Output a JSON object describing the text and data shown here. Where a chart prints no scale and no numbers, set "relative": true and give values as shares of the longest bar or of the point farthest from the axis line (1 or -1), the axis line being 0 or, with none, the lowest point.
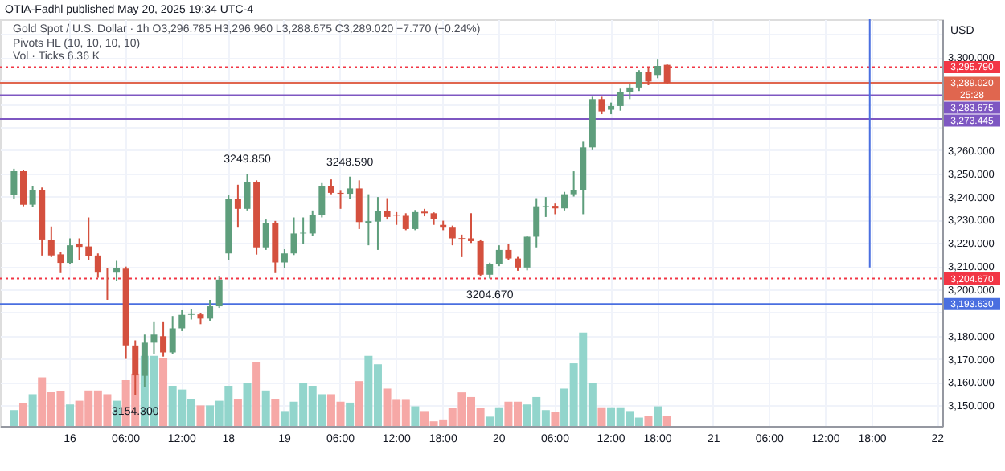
{
  "chart_data": [
    {
      "type": "candlestick",
      "title": "Gold Spot / U.S. Dollar · 1h  O3,296.785  H3,296.960  L3,288.675  C3,289.020  −7.770 (−0.24%)",
      "subtitle": "Pivots HL (10, 10, 10, 10)",
      "ylabel": "USD",
      "categories": [
        null,
        null,
        null,
        null,
        null,
        null,
        null,
        "16",
        null,
        null,
        null,
        null,
        null,
        "06:00",
        null,
        null,
        null,
        null,
        null,
        "12:00",
        null,
        null,
        null,
        null,
        "18",
        null,
        null,
        null,
        null,
        null,
        "19",
        null,
        null,
        null,
        null,
        null,
        "06:00",
        null,
        null,
        null,
        null,
        null,
        "12:00",
        null,
        null,
        null,
        null,
        "18:00",
        null,
        null,
        null,
        null,
        null,
        "20",
        null,
        null,
        null,
        null,
        null,
        "06:00",
        null,
        null,
        null,
        null,
        null,
        "12:00",
        null,
        null,
        null,
        null,
        "18:00",
        null,
        null,
        null,
        null,
        null,
        "21",
        null,
        null,
        null,
        null,
        null,
        "06:00",
        null,
        null,
        null,
        null,
        null,
        "12:00",
        null,
        null,
        null,
        null,
        "18:00",
        null,
        null,
        null,
        null,
        null,
        null,
        "22"
      ],
      "ohlc": [
        null,
        [
          3240.9,
          3252,
          3239,
          3250.9
        ],
        [
          3250.9,
          3251.5,
          3235.8,
          3236.5
        ],
        [
          3236.5,
          3244.5,
          3235.5,
          3242.8
        ],
        [
          3242.8,
          3243.9,
          3214.6,
          3221.5
        ],
        [
          3221.5,
          3227.1,
          3213.9,
          3214.6
        ],
        [
          3215.1,
          3216,
          3207,
          3211.4
        ],
        [
          3211.4,
          3222,
          3211,
          3219
        ],
        [
          3219.5,
          3222,
          3212.8,
          3218.3
        ],
        [
          3218.5,
          3231,
          3212.8,
          3214.4
        ],
        [
          3214.6,
          3215.5,
          3205,
          3207.2
        ],
        [
          3207.5,
          3209,
          3195.5,
          3207.3
        ],
        [
          3207.2,
          3212.3,
          3203.5,
          3209.1
        ],
        [
          3208.9,
          3209.8,
          3170,
          3175.8
        ],
        [
          3175.8,
          3178,
          3154.3,
          3162.9
        ],
        [
          3162.7,
          3180.5,
          3158,
          3177
        ],
        [
          3177,
          3186.2,
          3172,
          3180.5
        ],
        [
          3179.8,
          3186.2,
          3171,
          3172.8
        ],
        [
          3172.8,
          3188.5,
          3172,
          3183.2
        ],
        [
          3183.2,
          3191,
          3182,
          3189
        ],
        [
          3189,
          3191.5,
          3187,
          3189.3
        ],
        [
          3189.2,
          3189.8,
          3185,
          3187.4
        ],
        [
          3187.4,
          3195.5,
          3186.5,
          3192.7
        ],
        [
          3192.7,
          3205.8,
          3192,
          3204.2
        ],
        [
          3215.5,
          3240.5,
          3212.8,
          3238.9
        ],
        [
          3238.9,
          3245.1,
          3226.6,
          3234.7
        ],
        [
          3234.7,
          3249.85,
          3234,
          3246.2
        ],
        [
          3246.2,
          3247,
          3215,
          3218.1
        ],
        [
          3218.1,
          3230.1,
          3217,
          3228.5
        ],
        [
          3228.5,
          3229.5,
          3207,
          3211.6
        ],
        [
          3211.6,
          3217.3,
          3209.3,
          3215.5
        ],
        [
          3215.5,
          3231,
          3214.8,
          3224.1
        ],
        [
          3224.1,
          3231,
          3219.7,
          3224.4
        ],
        [
          3224.1,
          3234,
          3223.2,
          3231.9
        ],
        [
          3231.9,
          3245.8,
          3231,
          3244.4
        ],
        [
          3244.4,
          3247.4,
          3241,
          3241.6
        ],
        [
          3241.6,
          3242.5,
          3234.7,
          3241.2
        ],
        [
          3241.2,
          3248.59,
          3239,
          3243.5
        ],
        [
          3243.5,
          3247,
          3226,
          3229
        ],
        [
          3228.6,
          3241,
          3219,
          3229.4
        ],
        [
          3229.2,
          3239.8,
          3217,
          3233.9
        ],
        [
          3233.9,
          3239.3,
          3230.1,
          3231.2
        ],
        [
          3231.7,
          3233.3,
          3227.8,
          3231.6
        ],
        [
          3231.7,
          3232.8,
          3225.5,
          3226
        ],
        [
          3226,
          3234.2,
          3225.5,
          3233.3
        ],
        [
          3233.5,
          3234.7,
          3231.5,
          3232.8
        ],
        [
          3232.8,
          3233.2,
          3227.8,
          3230.3
        ],
        [
          3227.8,
          3229.6,
          3225.5,
          3226.6
        ],
        [
          3226.6,
          3227.5,
          3219,
          3222
        ],
        [
          3222.1,
          3223.6,
          3213.9,
          3221.8
        ],
        [
          3222,
          3232.8,
          3220,
          3220.8
        ],
        [
          3220.8,
          3221.5,
          3205.5,
          3206.3
        ],
        [
          3206.3,
          3211.5,
          3204.67,
          3211
        ],
        [
          3211,
          3219,
          3210,
          3217
        ],
        [
          3217,
          3219.7,
          3212.5,
          3213.3
        ],
        [
          3213.3,
          3214,
          3208,
          3209.4
        ],
        [
          3209.4,
          3223,
          3208.2,
          3222.7
        ],
        [
          3222.7,
          3239.3,
          3218.1,
          3235.8
        ],
        [
          3235.8,
          3239.8,
          3231.2,
          3236
        ],
        [
          3236,
          3237,
          3232.4,
          3234.9
        ],
        [
          3234.9,
          3242,
          3234,
          3241
        ],
        [
          3241,
          3250.9,
          3240,
          3242.8
        ],
        [
          3242.8,
          3263.6,
          3232.4,
          3261.2
        ],
        [
          3261.2,
          3283,
          3260,
          3282
        ],
        [
          3282,
          3283,
          3275.5,
          3276.7
        ],
        [
          3277.4,
          3280.5,
          3275.5,
          3279
        ],
        [
          3279,
          3286.5,
          3277,
          3285
        ],
        [
          3285,
          3288.5,
          3282,
          3287
        ],
        [
          3287,
          3294.5,
          3285.5,
          3293.6
        ],
        [
          3293.6,
          3295.79,
          3288,
          3289.6
        ],
        [
          3292.4,
          3299,
          3291,
          3296.3
        ],
        [
          3296.785,
          3296.96,
          3288.675,
          3289.02
        ],
        null,
        null,
        null,
        null,
        null,
        null,
        null,
        null,
        null,
        null,
        null,
        null,
        null,
        null,
        null,
        null,
        null,
        null,
        null,
        null,
        null,
        null,
        null,
        null,
        null,
        null,
        null,
        null,
        null
      ],
      "colors": [
        null,
        "#5e9e7c",
        "#d4503e",
        "#5e9e7c",
        "#d4503e",
        "#d4503e",
        "#d4503e",
        "#5e9e7c",
        "#d4503e",
        "#d4503e",
        "#d4503e",
        "#d4503e",
        "#5e9e7c",
        "#d4503e",
        "#d4503e",
        "#5e9e7c",
        "#5e9e7c",
        "#d4503e",
        "#5e9e7c",
        "#5e9e7c",
        "#5e9e7c",
        "#d4503e",
        "#5e9e7c",
        "#5e9e7c",
        "#5e9e7c",
        "#d4503e",
        "#5e9e7c",
        "#d4503e",
        "#5e9e7c",
        "#d4503e",
        "#5e9e7c",
        "#5e9e7c",
        "#5e9e7c",
        "#5e9e7c",
        "#5e9e7c",
        "#d4503e",
        "#d4503e",
        "#5e9e7c",
        "#d4503e",
        "#5e9e7c",
        "#5e9e7c",
        "#d4503e",
        "#d4503e",
        "#d4503e",
        "#5e9e7c",
        "#d4503e",
        "#d4503e",
        "#d4503e",
        "#d4503e",
        "#d4503e",
        "#d4503e",
        "#d4503e",
        "#5e9e7c",
        "#5e9e7c",
        "#d4503e",
        "#d4503e",
        "#5e9e7c",
        "#5e9e7c",
        "#5e9e7c",
        "#d4503e",
        "#5e9e7c",
        "#5e9e7c",
        "#5e9e7c",
        "#5e9e7c",
        "#d4503e",
        "#5e9e7c",
        "#5e9e7c",
        "#5e9e7c",
        "#5e9e7c",
        "#d4503e",
        "#5e9e7c",
        "#d4503e",
        null,
        null,
        null,
        null,
        null,
        null,
        null,
        null,
        null,
        null,
        null,
        null,
        null,
        null,
        null,
        null,
        null,
        null,
        null,
        null,
        null,
        null,
        null,
        null,
        null,
        null,
        null,
        null,
        null
      ],
      "ylim": [
        3141.1,
        3316.4
      ],
      "yticks": [
        {
          "value": 3150,
          "label": "3,150.000"
        },
        {
          "value": 3160,
          "label": "3,160.000"
        },
        {
          "value": 3170,
          "label": "3,170.000"
        },
        {
          "value": 3180,
          "label": "3,180.000"
        },
        {
          "value": 3190,
          "label": null
        },
        {
          "value": 3200,
          "label": "3,200.000"
        },
        {
          "value": 3210,
          "label": "3,210.000"
        },
        {
          "value": 3220,
          "label": "3,220.000"
        },
        {
          "value": 3230,
          "label": "3,230.000"
        },
        {
          "value": 3240,
          "label": "3,240.000"
        },
        {
          "value": 3250,
          "label": "3,250.000"
        },
        {
          "value": 3260,
          "label": "3,260.000"
        },
        {
          "value": 3270,
          "label": null
        },
        {
          "value": 3280,
          "label": null
        },
        {
          "value": 3290,
          "label": null
        },
        {
          "value": 3300,
          "label": "3,300.000"
        },
        {
          "value": 3310,
          "label": null
        }
      ],
      "grid": true,
      "ref_lines": [
        {
          "axis": "y",
          "value": 3295.79,
          "label": "3,295.790",
          "color": "#f23645",
          "line_style": "dotted"
        },
        {
          "axis": "y",
          "value": 3289.02,
          "label": "3,289.020\n25:28",
          "color": "#e0664f",
          "line_style": "solid"
        },
        {
          "axis": "y",
          "value": 3283.675,
          "label": "3,283.675",
          "color": "#7e57c2",
          "line_style": "solid"
        },
        {
          "axis": "y",
          "value": 3273.445,
          "label": "3,273.445",
          "color": "#7e57c2",
          "line_style": "solid"
        },
        {
          "axis": "y",
          "value": 3204.67,
          "label": "3,204.670",
          "color": "#f23645",
          "line_style": "dotted"
        },
        {
          "axis": "y",
          "value": 3193.63,
          "label": "3,193.630",
          "color": "#4a6fe0",
          "line_style": "solid"
        }
      ],
      "annotations": [
        "OTIA-Fadhl published May 20, 2025 19:34 UTC-4",
        {
          "text": "3249.850",
          "y": 3249.85
        },
        {
          "text": "3248.590",
          "y": 3248.59
        },
        {
          "text": "3204.670",
          "y": 3204.67
        },
        {
          "text": "3154.300",
          "y": 3154.3
        }
      ]
    },
    {
      "type": "bar",
      "relative": true,
      "tick_labels": false,
      "title": "Vol · Ticks  6.36 K",
      "values": [
        null,
        0.17,
        0.24,
        0.34,
        0.52,
        0.36,
        0.37,
        0.23,
        0.27,
        0.38,
        0.38,
        0.34,
        0.27,
        0.49,
        0.56,
        0.75,
        0.75,
        0.73,
        0.43,
        0.39,
        0.29,
        0.22,
        0.22,
        0.27,
        0.43,
        0.29,
        0.46,
        0.68,
        0.38,
        0.29,
        0.16,
        0.26,
        0.46,
        0.43,
        0.34,
        0.34,
        0.26,
        0.25,
        0.48,
        0.75,
        0.66,
        0.4,
        0.28,
        0.28,
        0.21,
        0.16,
        0.05,
        0.07,
        0.19,
        0.36,
        0.31,
        0.19,
        0.1,
        0.2,
        0.26,
        0.26,
        0.23,
        0.31,
        0.17,
        0.15,
        0.4,
        0.67,
        1,
        0.46,
        0.2,
        0.2,
        0.2,
        0.16,
        0.09,
        0.11,
        0.21,
        0.11,
        null,
        null,
        null,
        null,
        null,
        null,
        null,
        null,
        null,
        null,
        null,
        null,
        null,
        null,
        null,
        null,
        null,
        null,
        null,
        null,
        null,
        null,
        null,
        null,
        null,
        null,
        null,
        null,
        null
      ],
      "colors": [
        null,
        "#92d5cc",
        "#f6a8a6",
        "#92d5cc",
        "#f6a8a6",
        "#f6a8a6",
        "#f6a8a6",
        "#92d5cc",
        "#f6a8a6",
        "#f6a8a6",
        "#f6a8a6",
        "#f6a8a6",
        "#92d5cc",
        "#f6a8a6",
        "#f6a8a6",
        "#92d5cc",
        "#92d5cc",
        "#f6a8a6",
        "#92d5cc",
        "#92d5cc",
        "#92d5cc",
        "#f6a8a6",
        "#92d5cc",
        "#92d5cc",
        "#92d5cc",
        "#f6a8a6",
        "#92d5cc",
        "#f6a8a6",
        "#92d5cc",
        "#f6a8a6",
        "#92d5cc",
        "#92d5cc",
        "#92d5cc",
        "#92d5cc",
        "#92d5cc",
        "#f6a8a6",
        "#f6a8a6",
        "#92d5cc",
        "#f6a8a6",
        "#92d5cc",
        "#92d5cc",
        "#f6a8a6",
        "#f6a8a6",
        "#f6a8a6",
        "#92d5cc",
        "#f6a8a6",
        "#f6a8a6",
        "#f6a8a6",
        "#f6a8a6",
        "#f6a8a6",
        "#f6a8a6",
        "#f6a8a6",
        "#92d5cc",
        "#92d5cc",
        "#f6a8a6",
        "#f6a8a6",
        "#92d5cc",
        "#92d5cc",
        "#92d5cc",
        "#f6a8a6",
        "#92d5cc",
        "#92d5cc",
        "#92d5cc",
        "#92d5cc",
        "#f6a8a6",
        "#92d5cc",
        "#92d5cc",
        "#92d5cc",
        "#92d5cc",
        "#f6a8a6",
        "#92d5cc",
        "#f6a8a6",
        null,
        null,
        null,
        null,
        null,
        null,
        null,
        null,
        null,
        null,
        null,
        null,
        null,
        null,
        null,
        null,
        null,
        null,
        null,
        null,
        null,
        null,
        null,
        null,
        null,
        null,
        null,
        null,
        null
      ]
    }
  ]
}
